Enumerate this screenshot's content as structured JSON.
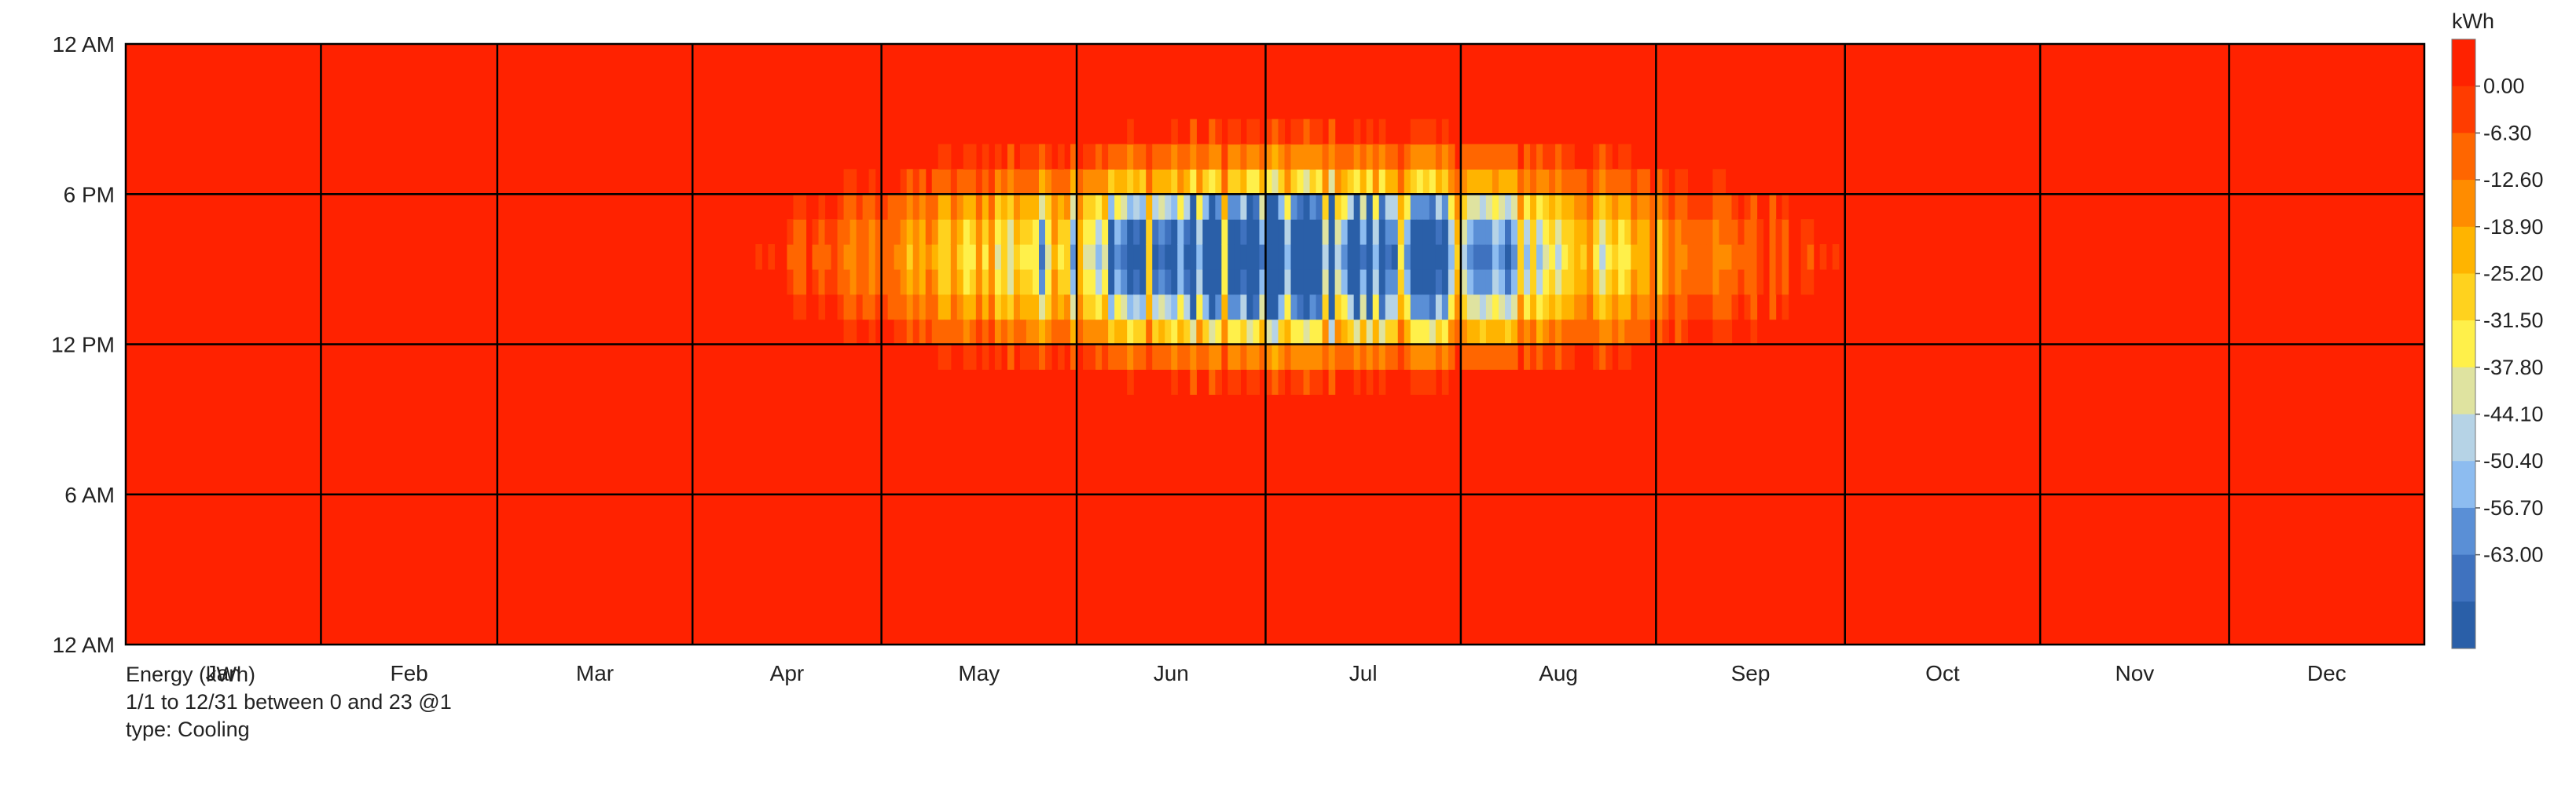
{
  "chart_data": {
    "type": "heatmap",
    "x_axis": {
      "tick_labels": [
        "Jan",
        "Feb",
        "Mar",
        "Apr",
        "May",
        "Jun",
        "Jul",
        "Aug",
        "Sep",
        "Oct",
        "Nov",
        "Dec"
      ],
      "range": [
        "1/1",
        "12/31"
      ]
    },
    "y_axis": {
      "tick_labels": [
        "12 AM",
        "6 AM",
        "12 PM",
        "6 PM",
        "12 AM"
      ],
      "range": [
        0,
        24
      ],
      "unit": "hour"
    },
    "colorbar": {
      "unit": "kWh",
      "range": [
        -63.0,
        6.3
      ],
      "levels": [
        "0.00",
        "-6.30",
        "-12.60",
        "-18.90",
        "-25.20",
        "-31.50",
        "-37.80",
        "-44.10",
        "-50.40",
        "-56.70",
        "-63.00"
      ],
      "colors": [
        "#ff2200",
        "#ff3c00",
        "#ff6600",
        "#ff8c00",
        "#ffb400",
        "#ffd21e",
        "#fff04a",
        "#dfe3a0",
        "#b6d3e6",
        "#8dbcf0",
        "#5a8fd6",
        "#3f72bf",
        "#2a5fa8"
      ]
    },
    "grid": true,
    "series": [
      {
        "name": "Cooling",
        "description_of_pattern": "cooling demand concentrated 12 PM–8 PM, from Apr to early Oct, peak in late Jun–Jul"
      }
    ]
  },
  "caption": {
    "line1": "Energy (kWh)",
    "line2": "1/1 to 12/31 between 0 and 23 @1",
    "line3": "type: Cooling"
  }
}
